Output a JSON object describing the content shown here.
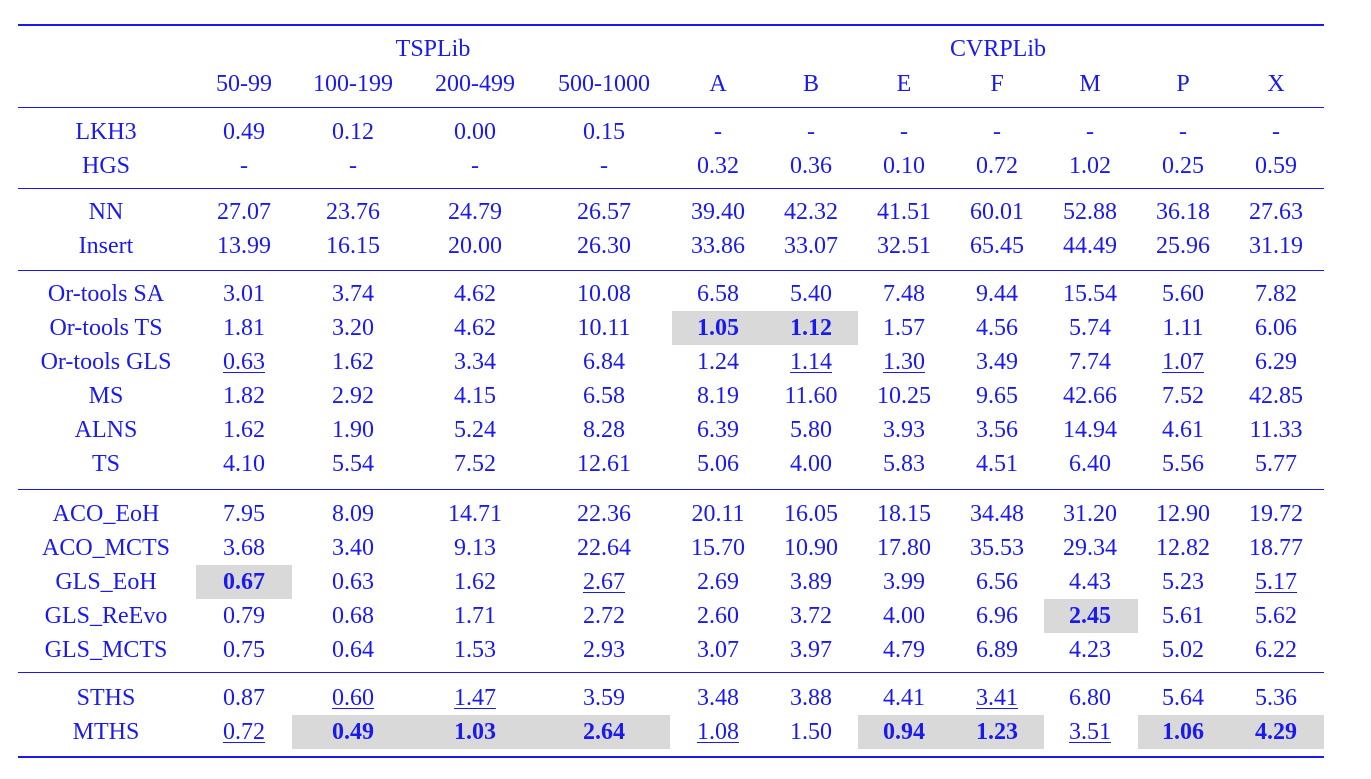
{
  "header": {
    "group1": "TSPLib",
    "group2": "CVRPLib",
    "columns": [
      "50-99",
      "100-199",
      "200-499",
      "500-1000",
      "A",
      "B",
      "E",
      "F",
      "M",
      "P",
      "X"
    ]
  },
  "row_groups": [
    [
      {
        "name": "LKH3",
        "cells": [
          [
            "0.49"
          ],
          [
            "0.12"
          ],
          [
            "0.00"
          ],
          [
            "0.15"
          ],
          [
            "-"
          ],
          [
            "-"
          ],
          [
            "-"
          ],
          [
            "-"
          ],
          [
            "-"
          ],
          [
            "-"
          ],
          [
            "-"
          ]
        ]
      },
      {
        "name": "HGS",
        "cells": [
          [
            "-"
          ],
          [
            "-"
          ],
          [
            "-"
          ],
          [
            "-"
          ],
          [
            "0.32"
          ],
          [
            "0.36"
          ],
          [
            "0.10"
          ],
          [
            "0.72"
          ],
          [
            "1.02"
          ],
          [
            "0.25"
          ],
          [
            "0.59"
          ]
        ]
      }
    ],
    [
      {
        "name": "NN",
        "cells": [
          [
            "27.07"
          ],
          [
            "23.76"
          ],
          [
            "24.79"
          ],
          [
            "26.57"
          ],
          [
            "39.40"
          ],
          [
            "42.32"
          ],
          [
            "41.51"
          ],
          [
            "60.01"
          ],
          [
            "52.88"
          ],
          [
            "36.18"
          ],
          [
            "27.63"
          ]
        ]
      },
      {
        "name": "Insert",
        "cells": [
          [
            "13.99"
          ],
          [
            "16.15"
          ],
          [
            "20.00"
          ],
          [
            "26.30"
          ],
          [
            "33.86"
          ],
          [
            "33.07"
          ],
          [
            "32.51"
          ],
          [
            "65.45"
          ],
          [
            "44.49"
          ],
          [
            "25.96"
          ],
          [
            "31.19"
          ]
        ]
      }
    ],
    [
      {
        "name": "Or-tools SA",
        "cells": [
          [
            "3.01"
          ],
          [
            "3.74"
          ],
          [
            "4.62"
          ],
          [
            "10.08"
          ],
          [
            "6.58"
          ],
          [
            "5.40"
          ],
          [
            "7.48"
          ],
          [
            "9.44"
          ],
          [
            "15.54"
          ],
          [
            "5.60"
          ],
          [
            "7.82"
          ]
        ]
      },
      {
        "name": "Or-tools TS",
        "cells": [
          [
            "1.81"
          ],
          [
            "3.20"
          ],
          [
            "4.62"
          ],
          [
            "10.11"
          ],
          [
            "1.05",
            "b"
          ],
          [
            "1.12",
            "b"
          ],
          [
            "1.57"
          ],
          [
            "4.56"
          ],
          [
            "5.74"
          ],
          [
            "1.11"
          ],
          [
            "6.06"
          ]
        ]
      },
      {
        "name": "Or-tools GLS",
        "cells": [
          [
            "0.63",
            "u"
          ],
          [
            "1.62"
          ],
          [
            "3.34"
          ],
          [
            "6.84"
          ],
          [
            "1.24"
          ],
          [
            "1.14",
            "u"
          ],
          [
            "1.30",
            "u"
          ],
          [
            "3.49"
          ],
          [
            "7.74"
          ],
          [
            "1.07",
            "u"
          ],
          [
            "6.29"
          ]
        ]
      },
      {
        "name": "MS",
        "cells": [
          [
            "1.82"
          ],
          [
            "2.92"
          ],
          [
            "4.15"
          ],
          [
            "6.58"
          ],
          [
            "8.19"
          ],
          [
            "11.60"
          ],
          [
            "10.25"
          ],
          [
            "9.65"
          ],
          [
            "42.66"
          ],
          [
            "7.52"
          ],
          [
            "42.85"
          ]
        ]
      },
      {
        "name": "ALNS",
        "cells": [
          [
            "1.62"
          ],
          [
            "1.90"
          ],
          [
            "5.24"
          ],
          [
            "8.28"
          ],
          [
            "6.39"
          ],
          [
            "5.80"
          ],
          [
            "3.93"
          ],
          [
            "3.56"
          ],
          [
            "14.94"
          ],
          [
            "4.61"
          ],
          [
            "11.33"
          ]
        ]
      },
      {
        "name": "TS",
        "cells": [
          [
            "4.10"
          ],
          [
            "5.54"
          ],
          [
            "7.52"
          ],
          [
            "12.61"
          ],
          [
            "5.06"
          ],
          [
            "4.00"
          ],
          [
            "5.83"
          ],
          [
            "4.51"
          ],
          [
            "6.40"
          ],
          [
            "5.56"
          ],
          [
            "5.77"
          ]
        ]
      }
    ],
    [
      {
        "name": "ACO_EoH",
        "cells": [
          [
            "7.95"
          ],
          [
            "8.09"
          ],
          [
            "14.71"
          ],
          [
            "22.36"
          ],
          [
            "20.11"
          ],
          [
            "16.05"
          ],
          [
            "18.15"
          ],
          [
            "34.48"
          ],
          [
            "31.20"
          ],
          [
            "12.90"
          ],
          [
            "19.72"
          ]
        ]
      },
      {
        "name": "ACO_MCTS",
        "cells": [
          [
            "3.68"
          ],
          [
            "3.40"
          ],
          [
            "9.13"
          ],
          [
            "22.64"
          ],
          [
            "15.70"
          ],
          [
            "10.90"
          ],
          [
            "17.80"
          ],
          [
            "35.53"
          ],
          [
            "29.34"
          ],
          [
            "12.82"
          ],
          [
            "18.77"
          ]
        ]
      },
      {
        "name": "GLS_EoH",
        "cells": [
          [
            "0.67",
            "b"
          ],
          [
            "0.63"
          ],
          [
            "1.62"
          ],
          [
            "2.67",
            "u"
          ],
          [
            "2.69"
          ],
          [
            "3.89"
          ],
          [
            "3.99"
          ],
          [
            "6.56"
          ],
          [
            "4.43"
          ],
          [
            "5.23"
          ],
          [
            "5.17",
            "u"
          ]
        ]
      },
      {
        "name": "GLS_ReEvo",
        "cells": [
          [
            "0.79"
          ],
          [
            "0.68"
          ],
          [
            "1.71"
          ],
          [
            "2.72"
          ],
          [
            "2.60"
          ],
          [
            "3.72"
          ],
          [
            "4.00"
          ],
          [
            "6.96"
          ],
          [
            "2.45",
            "b"
          ],
          [
            "5.61"
          ],
          [
            "5.62"
          ]
        ]
      },
      {
        "name": "GLS_MCTS",
        "cells": [
          [
            "0.75"
          ],
          [
            "0.64"
          ],
          [
            "1.53"
          ],
          [
            "2.93"
          ],
          [
            "3.07"
          ],
          [
            "3.97"
          ],
          [
            "4.79"
          ],
          [
            "6.89"
          ],
          [
            "4.23"
          ],
          [
            "5.02"
          ],
          [
            "6.22"
          ]
        ]
      }
    ],
    [
      {
        "name": "STHS",
        "cells": [
          [
            "0.87"
          ],
          [
            "0.60",
            "u"
          ],
          [
            "1.47",
            "u"
          ],
          [
            "3.59"
          ],
          [
            "3.48"
          ],
          [
            "3.88"
          ],
          [
            "4.41"
          ],
          [
            "3.41",
            "u"
          ],
          [
            "6.80"
          ],
          [
            "5.64"
          ],
          [
            "5.36"
          ]
        ]
      },
      {
        "name": "MTHS",
        "cells": [
          [
            "0.72",
            "u"
          ],
          [
            "0.49",
            "b"
          ],
          [
            "1.03",
            "b"
          ],
          [
            "2.64",
            "b"
          ],
          [
            "1.08",
            "u"
          ],
          [
            "1.50"
          ],
          [
            "0.94",
            "b"
          ],
          [
            "1.23",
            "b"
          ],
          [
            "3.51",
            "u"
          ],
          [
            "1.06",
            "b"
          ],
          [
            "4.29",
            "b"
          ]
        ]
      }
    ]
  ]
}
